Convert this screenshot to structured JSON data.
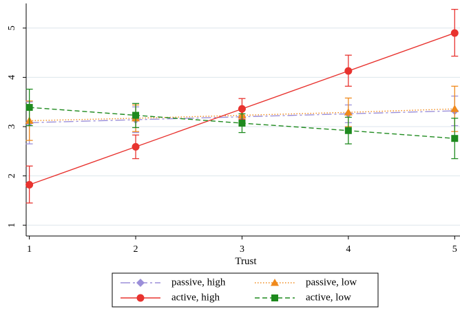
{
  "chart_data": {
    "type": "line",
    "title": "",
    "xlabel": "Trust",
    "ylabel": "",
    "x": [
      1,
      2,
      3,
      4,
      5
    ],
    "xticks": [
      "1",
      "2",
      "3",
      "4",
      "5"
    ],
    "yticks": [
      "1",
      "2",
      "3",
      "4",
      "5"
    ],
    "xlim": [
      0.97,
      5.05
    ],
    "ylim": [
      0.78,
      5.5
    ],
    "grid": true,
    "legend_position": "bottom",
    "series": [
      {
        "name": "passive, high",
        "color": "#9b8fd9",
        "dash": "long-dash-dot",
        "marker": "diamond",
        "values": [
          3.08,
          3.14,
          3.2,
          3.26,
          3.32
        ],
        "lower": [
          2.65,
          2.88,
          3.05,
          3.08,
          3.02
        ],
        "upper": [
          3.5,
          3.4,
          3.35,
          3.44,
          3.62
        ]
      },
      {
        "name": "passive, low",
        "color": "#f08a1c",
        "dash": "dotted",
        "marker": "triangle",
        "values": [
          3.12,
          3.17,
          3.23,
          3.29,
          3.36
        ],
        "lower": [
          2.72,
          2.9,
          3.08,
          3.0,
          2.9
        ],
        "upper": [
          3.52,
          3.44,
          3.38,
          3.58,
          3.82
        ]
      },
      {
        "name": "active, high",
        "color": "#e8332f",
        "dash": "solid",
        "marker": "circle",
        "values": [
          1.82,
          2.59,
          3.36,
          4.13,
          4.9
        ],
        "lower": [
          1.45,
          2.35,
          3.15,
          3.82,
          4.43
        ],
        "upper": [
          2.2,
          2.83,
          3.57,
          4.45,
          5.38
        ]
      },
      {
        "name": "active, low",
        "color": "#1e8a1e",
        "dash": "dashed",
        "marker": "square",
        "values": [
          3.39,
          3.23,
          3.07,
          2.92,
          2.76
        ],
        "lower": [
          3.02,
          2.98,
          2.88,
          2.65,
          2.35
        ],
        "upper": [
          3.76,
          3.47,
          3.26,
          3.19,
          3.17
        ]
      }
    ]
  }
}
